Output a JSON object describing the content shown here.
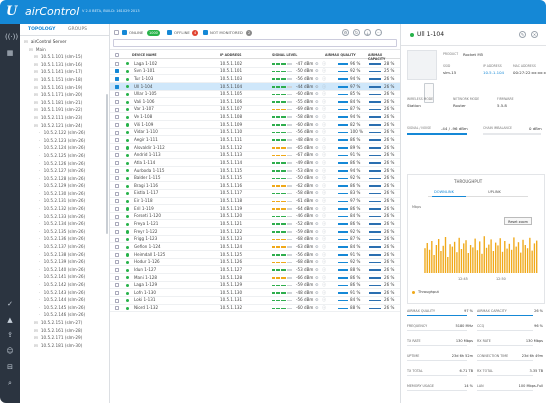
{
  "app": {
    "title": "airControl",
    "logo": "U",
    "version": "V 2.0 BETA, BUILD: 161029 2013"
  },
  "nav_icons": [
    "wifi-icon",
    "map-icon",
    "dashboard-icon",
    "check-icon",
    "alarm-icon",
    "upload-icon",
    "users-icon",
    "cart-icon",
    "search-icon"
  ],
  "tree": {
    "tabs": [
      "TOPOLOGY",
      "GROUPS"
    ],
    "rows": [
      {
        "label": "airControl Server",
        "indent": 0
      },
      {
        "label": "Main",
        "indent": 1
      },
      {
        "label": "10.5.1.101 (slm-15)",
        "indent": 2
      },
      {
        "label": "10.5.1.131 (slm-16)",
        "indent": 2
      },
      {
        "label": "10.5.1.141 (slm-17)",
        "indent": 2
      },
      {
        "label": "10.5.1.151 (slm-18)",
        "indent": 2
      },
      {
        "label": "10.5.1.161 (slm-19)",
        "indent": 2
      },
      {
        "label": "10.5.1.171 (slm-20)",
        "indent": 2
      },
      {
        "label": "10.5.1.181 (slm-21)",
        "indent": 2
      },
      {
        "label": "10.5.1.191 (slm-22)",
        "indent": 2
      },
      {
        "label": "10.5.2.111 (slm-23)",
        "indent": 2
      },
      {
        "label": "10.5.2.121 (slm-24)",
        "indent": 2
      },
      {
        "label": "10.5.2.122 (slm-26)",
        "indent": 3
      },
      {
        "label": "10.5.2.123 (slm-26)",
        "indent": 3
      },
      {
        "label": "10.5.2.124 (slm-26)",
        "indent": 3
      },
      {
        "label": "10.5.2.125 (slm-26)",
        "indent": 3
      },
      {
        "label": "10.5.2.126 (slm-26)",
        "indent": 3
      },
      {
        "label": "10.5.2.127 (slm-26)",
        "indent": 3
      },
      {
        "label": "10.5.2.128 (slm-26)",
        "indent": 3
      },
      {
        "label": "10.5.2.129 (slm-26)",
        "indent": 3
      },
      {
        "label": "10.5.2.130 (slm-26)",
        "indent": 3
      },
      {
        "label": "10.5.2.131 (slm-26)",
        "indent": 3
      },
      {
        "label": "10.5.2.132 (slm-26)",
        "indent": 3
      },
      {
        "label": "10.5.2.133 (slm-26)",
        "indent": 3
      },
      {
        "label": "10.5.2.134 (slm-26)",
        "indent": 3
      },
      {
        "label": "10.5.2.135 (slm-26)",
        "indent": 3
      },
      {
        "label": "10.5.2.136 (slm-26)",
        "indent": 3
      },
      {
        "label": "10.5.2.137 (slm-26)",
        "indent": 3
      },
      {
        "label": "10.5.2.138 (slm-26)",
        "indent": 3
      },
      {
        "label": "10.5.2.139 (slm-26)",
        "indent": 3
      },
      {
        "label": "10.5.2.140 (slm-26)",
        "indent": 3
      },
      {
        "label": "10.5.2.141 (slm-26)",
        "indent": 3
      },
      {
        "label": "10.5.2.142 (slm-26)",
        "indent": 3
      },
      {
        "label": "10.5.2.143 (slm-26)",
        "indent": 3
      },
      {
        "label": "10.5.2.144 (slm-26)",
        "indent": 3
      },
      {
        "label": "10.5.2.145 (slm-26)",
        "indent": 3
      },
      {
        "label": "10.5.2.146 (slm-26)",
        "indent": 3
      },
      {
        "label": "10.5.2.151 (slm-27)",
        "indent": 2
      },
      {
        "label": "10.5.2.161 (slm-28)",
        "indent": 2
      },
      {
        "label": "10.5.2.171 (slm-29)",
        "indent": 2
      },
      {
        "label": "10.5.2.181 (slm-30)",
        "indent": 2
      }
    ]
  },
  "toolbar": {
    "online_label": "ONLINE",
    "online_count": "1000",
    "offline_label": "OFFLINE",
    "offline_count": "4",
    "notmon_label": "NOT MONITORED",
    "notmon_count": "2"
  },
  "table": {
    "headers": [
      "DEVICE NAME",
      "IP ADDRESS",
      "SIGNAL LEVEL",
      "AIRMAX QUALITY",
      "AIRMAX CAPACITY"
    ],
    "rows": [
      {
        "name": "Laga 1-102",
        "ip": "10.5.1.102",
        "signal": "-47 dBm",
        "aq": "96 %",
        "ac": "28 %",
        "checked": false,
        "sel": false,
        "sigc": "#2fae4e"
      },
      {
        "name": "Svn 1-101",
        "ip": "10.5.1.101",
        "signal": "-50 dBm",
        "aq": "92 %",
        "ac": "25 %",
        "checked": true,
        "sel": false,
        "sigc": "#2fae4e"
      },
      {
        "name": "Tur 1-103",
        "ip": "10.5.1.103",
        "signal": "-56 dBm",
        "aq": "94 %",
        "ac": "26 %",
        "checked": true,
        "sel": false,
        "sigc": "#2fae4e"
      },
      {
        "name": "Ull 1-104",
        "ip": "10.5.1.104",
        "signal": "-44 dBm",
        "aq": "97 %",
        "ac": "26 %",
        "checked": true,
        "sel": true,
        "sigc": "#2fae4e"
      },
      {
        "name": "Ullar 1-105",
        "ip": "10.5.1.105",
        "signal": "-60 dBm",
        "aq": "85 %",
        "ac": "26 %",
        "checked": false,
        "sel": false,
        "sigc": "#2fae4e"
      },
      {
        "name": "Vali 1-106",
        "ip": "10.5.1.106",
        "signal": "-55 dBm",
        "aq": "84 %",
        "ac": "26 %",
        "checked": false,
        "sel": false,
        "sigc": "#2fae4e"
      },
      {
        "name": "Var 1-107",
        "ip": "10.5.1.107",
        "signal": "-69 dBm",
        "aq": "87 %",
        "ac": "26 %",
        "checked": false,
        "sel": false,
        "sigc": "#f0a91a"
      },
      {
        "name": "Ve 1-108",
        "ip": "10.5.1.108",
        "signal": "-58 dBm",
        "aq": "94 %",
        "ac": "26 %",
        "checked": false,
        "sel": false,
        "sigc": "#2fae4e"
      },
      {
        "name": "Vili 1-109",
        "ip": "10.5.1.109",
        "signal": "-60 dBm",
        "aq": "82 %",
        "ac": "26 %",
        "checked": false,
        "sel": false,
        "sigc": "#2fae4e"
      },
      {
        "name": "Vidar 1-110",
        "ip": "10.5.1.110",
        "signal": "-56 dBm",
        "aq": "100 %",
        "ac": "26 %",
        "checked": false,
        "sel": false,
        "sigc": "#2fae4e"
      },
      {
        "name": "Aegir 1-111",
        "ip": "10.5.1.111",
        "signal": "-48 dBm",
        "aq": "86 %",
        "ac": "26 %",
        "checked": false,
        "sel": false,
        "sigc": "#2fae4e"
      },
      {
        "name": "Alsvaldir 1-112",
        "ip": "10.5.1.112",
        "signal": "-65 dBm",
        "aq": "89 %",
        "ac": "26 %",
        "checked": false,
        "sel": false,
        "sigc": "#f0a91a"
      },
      {
        "name": "Andrid 1-113",
        "ip": "10.5.1.113",
        "signal": "-67 dBm",
        "aq": "91 %",
        "ac": "26 %",
        "checked": false,
        "sel": false,
        "sigc": "#f0a91a"
      },
      {
        "name": "Atla 1-114",
        "ip": "10.5.1.114",
        "signal": "-49 dBm",
        "aq": "86 %",
        "ac": "26 %",
        "checked": false,
        "sel": false,
        "sigc": "#2fae4e"
      },
      {
        "name": "Aurbodа 1-115",
        "ip": "10.5.1.115",
        "signal": "-53 dBm",
        "aq": "94 %",
        "ac": "26 %",
        "checked": false,
        "sel": false,
        "sigc": "#2fae4e"
      },
      {
        "name": "Balder 1-115",
        "ip": "10.5.1.115",
        "signal": "-50 dBm",
        "aq": "92 %",
        "ac": "26 %",
        "checked": false,
        "sel": false,
        "sigc": "#2fae4e"
      },
      {
        "name": "Bragi 1-116",
        "ip": "10.5.1.116",
        "signal": "-62 dBm",
        "aq": "86 %",
        "ac": "26 %",
        "checked": false,
        "sel": false,
        "sigc": "#f0a91a"
      },
      {
        "name": "Eistla 1-117",
        "ip": "10.5.1.117",
        "signal": "-58 dBm",
        "aq": "83 %",
        "ac": "26 %",
        "checked": false,
        "sel": false,
        "sigc": "#2fae4e"
      },
      {
        "name": "Eir 1-118",
        "ip": "10.5.1.118",
        "signal": "-61 dBm",
        "aq": "97 %",
        "ac": "26 %",
        "checked": false,
        "sel": false,
        "sigc": "#f0a91a"
      },
      {
        "name": "Eril 1-119",
        "ip": "10.5.1.119",
        "signal": "-64 dBm",
        "aq": "86 %",
        "ac": "26 %",
        "checked": false,
        "sel": false,
        "sigc": "#f0a91a"
      },
      {
        "name": "Forseti 1-120",
        "ip": "10.5.1.120",
        "signal": "-46 dBm",
        "aq": "84 %",
        "ac": "26 %",
        "checked": false,
        "sel": false,
        "sigc": "#2fae4e"
      },
      {
        "name": "Freya 1-121",
        "ip": "10.5.1.121",
        "signal": "-52 dBm",
        "aq": "86 %",
        "ac": "26 %",
        "checked": false,
        "sel": false,
        "sigc": "#2fae4e"
      },
      {
        "name": "Freyr 1-122",
        "ip": "10.5.1.122",
        "signal": "-59 dBm",
        "aq": "92 %",
        "ac": "26 %",
        "checked": false,
        "sel": false,
        "sigc": "#2fae4e"
      },
      {
        "name": "Frigg 1-123",
        "ip": "10.5.1.123",
        "signal": "-68 dBm",
        "aq": "87 %",
        "ac": "26 %",
        "checked": false,
        "sel": false,
        "sigc": "#f0a91a"
      },
      {
        "name": "Gefion 1-124",
        "ip": "10.5.1.124",
        "signal": "-63 dBm",
        "aq": "84 %",
        "ac": "26 %",
        "checked": false,
        "sel": false,
        "sigc": "#f0a91a"
      },
      {
        "name": "Heimdall 1-125",
        "ip": "10.5.1.125",
        "signal": "-56 dBm",
        "aq": "91 %",
        "ac": "26 %",
        "checked": false,
        "sel": false,
        "sigc": "#2fae4e"
      },
      {
        "name": "Hodur 1-126",
        "ip": "10.5.1.126",
        "signal": "-68 dBm",
        "aq": "92 %",
        "ac": "26 %",
        "checked": false,
        "sel": false,
        "sigc": "#f0a91a"
      },
      {
        "name": "Idun 1-127",
        "ip": "10.5.1.127",
        "signal": "-53 dBm",
        "aq": "88 %",
        "ac": "26 %",
        "checked": false,
        "sel": false,
        "sigc": "#2fae4e"
      },
      {
        "name": "Mani 1-128",
        "ip": "10.5.1.128",
        "signal": "-66 dBm",
        "aq": "86 %",
        "ac": "26 %",
        "checked": false,
        "sel": false,
        "sigc": "#f0a91a"
      },
      {
        "name": "Laga 1-129",
        "ip": "10.5.1.129",
        "signal": "-59 dBm",
        "aq": "86 %",
        "ac": "26 %",
        "checked": false,
        "sel": false,
        "sigc": "#2fae4e"
      },
      {
        "name": "Lofn 1-130",
        "ip": "10.5.1.130",
        "signal": "-48 dBm",
        "aq": "91 %",
        "ac": "26 %",
        "checked": false,
        "sel": false,
        "sigc": "#2fae4e"
      },
      {
        "name": "Loki 1-131",
        "ip": "10.5.1.131",
        "signal": "-56 dBm",
        "aq": "84 %",
        "ac": "26 %",
        "checked": false,
        "sel": false,
        "sigc": "#2fae4e"
      },
      {
        "name": "Niord 1-132",
        "ip": "10.5.1.132",
        "signal": "-60 dBm",
        "aq": "88 %",
        "ac": "26 %",
        "checked": false,
        "sel": false,
        "sigc": "#2fae4e"
      }
    ]
  },
  "panel": {
    "title": "Ull 1-104",
    "product_label": "PRODUCT",
    "product": "Rocket M5",
    "fields": [
      {
        "label": "SSID",
        "value": "slm-15",
        "link": false
      },
      {
        "label": "IP ADDRESS",
        "value": "10.5.1.104",
        "link": true
      },
      {
        "label": "MAC ADDRESS",
        "value": "00:27:22:xx:xx:xx",
        "link": false
      },
      {
        "label": "WIRELESS MODE",
        "value": "Station",
        "link": false
      },
      {
        "label": "NETWORK MODE",
        "value": "Router",
        "link": false
      },
      {
        "label": "FIRMWARE",
        "value": "5.5.8",
        "link": false
      }
    ],
    "signal_label": "SIGNAL / NOISE",
    "signal_value": "-44 / -96 dBm",
    "chain_label": "CHAIN IMBALANCE",
    "chain_value": "0 dBm",
    "throughput_title": "THROUGHPUT",
    "tabs": [
      "DOWNLINK",
      "UPLINK"
    ],
    "reset_zoom": "Reset zoom",
    "y_unit": "Mbps",
    "x_ticks": [
      "12:45",
      "12:50"
    ],
    "legend": "Throughput",
    "stats": [
      {
        "label": "AIRMAX QUALITY",
        "value": "97 %"
      },
      {
        "label": "AIRMAX CAPACITY",
        "value": "26 %"
      },
      {
        "label": "FREQUENCY",
        "value": "5180 MHz"
      },
      {
        "label": "CCQ",
        "value": "96 %"
      },
      {
        "label": "TX RATE",
        "value": "130 Mbps"
      },
      {
        "label": "RX RATE",
        "value": "130 Mbps"
      },
      {
        "label": "UPTIME",
        "value": "23d 6h 52m"
      },
      {
        "label": "CONNECTION TIME",
        "value": "23d 6h 49m"
      },
      {
        "label": "TX TOTAL",
        "value": "6.71 TB"
      },
      {
        "label": "RX TOTAL",
        "value": "3.35 TB"
      },
      {
        "label": "MEMORY USAGE",
        "value": "14 %"
      },
      {
        "label": "LAN",
        "value": "100 Mbps-Full"
      }
    ]
  },
  "chart_data": {
    "type": "bar",
    "title": "THROUGHPUT",
    "ylabel": "Mbps",
    "x_ticks": [
      "12:45",
      "12:50"
    ],
    "series": [
      {
        "name": "Throughput",
        "color": "#f0a91a",
        "values": [
          62,
          75,
          58,
          80,
          45,
          70,
          85,
          55,
          68,
          90,
          40,
          72,
          66,
          78,
          52,
          88,
          60,
          74,
          82,
          50,
          70,
          64,
          86,
          57,
          79,
          48,
          92,
          63,
          71,
          84,
          55,
          76,
          69,
          87,
          53,
          80,
          61,
          73,
          58,
          89,
          66,
          77,
          51,
          83,
          70,
          62,
          88,
          56,
          74,
          81
        ]
      }
    ]
  }
}
